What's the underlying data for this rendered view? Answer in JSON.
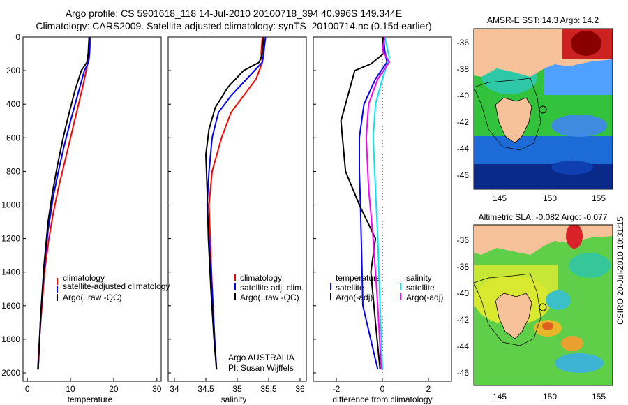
{
  "header": {
    "title_line1": "Argo profile: CS 5901618_118 14-Jul-2010 20100718_394 40.996S 149.344E",
    "title_line2": "Climatology: CARS2009. Satellite-adjusted climatology: synTS_20100714.nc (0.15d earlier)"
  },
  "side_label": "CSIRO 20-Jul-2010 10:31:15",
  "colors": {
    "clim": "#ff0000",
    "sat": "#0000ff",
    "argo": "#000000",
    "sal_sat": "#00e5ff",
    "sal_argo": "#ff00ff",
    "land": "#f7c299"
  },
  "chart_data": [
    {
      "name": "temperature",
      "type": "line",
      "xlabel": "temperature",
      "xlim": [
        -1,
        31
      ],
      "ylim": [
        0,
        2050
      ],
      "xticks": [
        "0",
        "10",
        "20",
        "30"
      ],
      "yticks": [
        "0",
        "200",
        "400",
        "600",
        "800",
        "1000",
        "1200",
        "1400",
        "1600",
        "1800",
        "2000"
      ],
      "legend": [
        "climatology",
        "satellite-adjusted climatology",
        "Argo(..raw -QC)"
      ],
      "series": [
        {
          "name": "climatology",
          "points": [
            [
              14.3,
              0
            ],
            [
              14.3,
              50
            ],
            [
              14.2,
              100
            ],
            [
              14.0,
              150
            ],
            [
              13.8,
              180
            ],
            [
              12.8,
              300
            ],
            [
              11.4,
              450
            ],
            [
              10.0,
              600
            ],
            [
              8.6,
              750
            ],
            [
              7.2,
              900
            ],
            [
              6.0,
              1050
            ],
            [
              5.0,
              1200
            ],
            [
              4.0,
              1400
            ],
            [
              3.4,
              1600
            ],
            [
              2.8,
              1800
            ],
            [
              2.4,
              1980
            ]
          ]
        },
        {
          "name": "satellite-adjusted climatology",
          "points": [
            [
              14.5,
              0
            ],
            [
              14.5,
              50
            ],
            [
              14.4,
              100
            ],
            [
              14.2,
              150
            ],
            [
              13.2,
              200
            ],
            [
              11.6,
              350
            ],
            [
              10.0,
              500
            ],
            [
              8.5,
              650
            ],
            [
              7.2,
              800
            ],
            [
              6.0,
              950
            ],
            [
              4.8,
              1150
            ],
            [
              3.8,
              1400
            ],
            [
              3.0,
              1700
            ],
            [
              2.5,
              1980
            ]
          ]
        },
        {
          "name": "Argo(..raw -QC)",
          "points": [
            [
              14.3,
              0
            ],
            [
              14.2,
              50
            ],
            [
              14.1,
              100
            ],
            [
              13.8,
              150
            ],
            [
              12.5,
              200
            ],
            [
              11.0,
              320
            ],
            [
              9.6,
              460
            ],
            [
              8.3,
              600
            ],
            [
              7.0,
              760
            ],
            [
              5.8,
              930
            ],
            [
              4.8,
              1100
            ],
            [
              3.9,
              1350
            ],
            [
              3.1,
              1650
            ],
            [
              2.5,
              1980
            ]
          ]
        }
      ]
    },
    {
      "name": "salinity",
      "type": "line",
      "xlabel": "salinity",
      "xlim": [
        33.9,
        36.1
      ],
      "ylim": [
        0,
        2050
      ],
      "xticks": [
        "34",
        "34.5",
        "35",
        "35.5",
        "36"
      ],
      "legend": [
        "climatology",
        "satellite adj. clim.",
        "Argo(..raw -QC)"
      ],
      "annotation": [
        "Argo AUSTRALIA",
        "PI: Susan Wijffels"
      ],
      "series": [
        {
          "name": "climatology",
          "points": [
            [
              35.4,
              0
            ],
            [
              35.38,
              100
            ],
            [
              35.4,
              150
            ],
            [
              35.3,
              250
            ],
            [
              35.1,
              350
            ],
            [
              34.9,
              450
            ],
            [
              34.75,
              600
            ],
            [
              34.6,
              800
            ],
            [
              34.55,
              1000
            ],
            [
              34.57,
              1200
            ],
            [
              34.6,
              1500
            ],
            [
              34.64,
              1800
            ],
            [
              34.67,
              1980
            ]
          ]
        },
        {
          "name": "satellite adj. clim.",
          "points": [
            [
              35.45,
              0
            ],
            [
              35.42,
              100
            ],
            [
              35.4,
              150
            ],
            [
              35.15,
              250
            ],
            [
              34.9,
              350
            ],
            [
              34.7,
              450
            ],
            [
              34.6,
              600
            ],
            [
              34.55,
              800
            ],
            [
              34.52,
              1000
            ],
            [
              34.55,
              1200
            ],
            [
              34.6,
              1500
            ],
            [
              34.64,
              1800
            ],
            [
              34.67,
              1980
            ]
          ]
        },
        {
          "name": "Argo(..raw -QC)",
          "points": [
            [
              35.42,
              0
            ],
            [
              35.4,
              100
            ],
            [
              35.35,
              150
            ],
            [
              35.1,
              200
            ],
            [
              34.85,
              300
            ],
            [
              34.65,
              420
            ],
            [
              34.55,
              550
            ],
            [
              34.5,
              700
            ],
            [
              34.52,
              900
            ],
            [
              34.54,
              1200
            ],
            [
              34.58,
              1500
            ],
            [
              34.63,
              1800
            ],
            [
              34.67,
              1980
            ]
          ]
        }
      ]
    },
    {
      "name": "difference",
      "type": "line",
      "xlabel": "difference from climatology",
      "xlim": [
        -3,
        3
      ],
      "ylim": [
        0,
        2050
      ],
      "xticks": [
        "-2",
        "0",
        "2"
      ],
      "legend_temperature": {
        "header": "temperature",
        "items": [
          "satellite",
          "Argo(-adj)"
        ]
      },
      "legend_salinity": {
        "header": "salinity",
        "items": [
          "satellite",
          "Argo(-adj)"
        ]
      },
      "series": [
        {
          "name": "temperature satellite",
          "points": [
            [
              0.05,
              0
            ],
            [
              0.1,
              80
            ],
            [
              0.2,
              150
            ],
            [
              -0.3,
              250
            ],
            [
              -0.8,
              400
            ],
            [
              -1.0,
              600
            ],
            [
              -1.0,
              800
            ],
            [
              -0.95,
              1000
            ],
            [
              -0.9,
              1300
            ],
            [
              -0.85,
              1600
            ],
            [
              -0.2,
              1980
            ]
          ]
        },
        {
          "name": "temperature Argo(-adj)",
          "points": [
            [
              0.0,
              0
            ],
            [
              0.05,
              100
            ],
            [
              -0.5,
              160
            ],
            [
              -1.2,
              200
            ],
            [
              -1.5,
              350
            ],
            [
              -1.8,
              500
            ],
            [
              -1.6,
              800
            ],
            [
              -1.0,
              1000
            ],
            [
              -0.3,
              1200
            ],
            [
              -0.5,
              1400
            ],
            [
              -0.3,
              1700
            ],
            [
              -0.1,
              1980
            ]
          ]
        },
        {
          "name": "salinity satellite",
          "points": [
            [
              0.1,
              0
            ],
            [
              0.2,
              60
            ],
            [
              0.3,
              120
            ],
            [
              0.0,
              250
            ],
            [
              -0.3,
              400
            ],
            [
              -0.4,
              600
            ],
            [
              -0.3,
              900
            ],
            [
              -0.2,
              1200
            ],
            [
              -0.1,
              1600
            ],
            [
              0.0,
              1980
            ]
          ]
        },
        {
          "name": "salinity Argo(-adj)",
          "points": [
            [
              0.1,
              0
            ],
            [
              0.0,
              80
            ],
            [
              0.3,
              150
            ],
            [
              -0.2,
              250
            ],
            [
              -0.6,
              400
            ],
            [
              -0.7,
              600
            ],
            [
              -0.6,
              900
            ],
            [
              -0.4,
              1200
            ],
            [
              -0.2,
              1600
            ],
            [
              -0.05,
              1980
            ]
          ]
        }
      ]
    },
    {
      "name": "amsr-sst-map",
      "type": "heatmap",
      "title": "AMSR-E SST: 14.3 Argo: 14.2",
      "xticks": [
        "145",
        "150",
        "155"
      ],
      "yticks": [
        "-36",
        "-38",
        "-40",
        "-42",
        "-44",
        "-46"
      ]
    },
    {
      "name": "sla-map",
      "type": "heatmap",
      "title": "Altimetric SLA: -0.082 Argo: -0.077",
      "xticks": [
        "145",
        "150",
        "155"
      ],
      "yticks": [
        "-36",
        "-38",
        "-40",
        "-42",
        "-44",
        "-46"
      ]
    }
  ]
}
